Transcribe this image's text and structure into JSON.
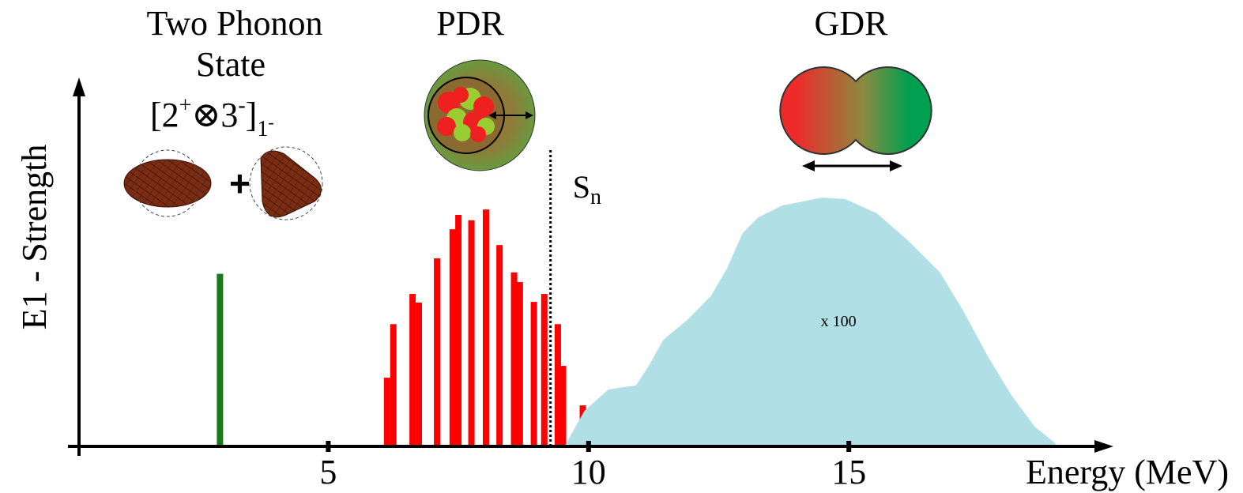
{
  "chart_data": {
    "type": "spectrum",
    "xlabel": "Energy (MeV)",
    "ylabel": "E1 - Strength",
    "xlim": [
      0,
      19.9
    ],
    "ylim": [
      0,
      100
    ],
    "xticks": [
      5,
      10,
      15
    ],
    "series": [
      {
        "type": "bar",
        "color": "#1a7a1a",
        "x": [
          2.92
        ],
        "values": [
          48
        ]
      },
      {
        "type": "bar",
        "color": "#ff0000",
        "x": [
          6.13,
          6.25,
          6.62,
          6.74,
          7.09,
          7.39,
          7.5,
          7.75,
          8.03,
          8.29,
          8.57,
          8.68,
          8.95,
          9.15,
          9.41,
          9.51,
          9.89
        ],
        "values": [
          19.1,
          34,
          42.4,
          40,
          52.3,
          60.4,
          64.4,
          62.9,
          65.9,
          56,
          48.4,
          45.7,
          40.2,
          42.4,
          34,
          22.4,
          11.4
        ]
      },
      {
        "type": "area",
        "color": "#b0dfe5",
        "x": [
          9.54,
          9.92,
          10.38,
          10.68,
          10.91,
          11.14,
          11.44,
          11.9,
          12.35,
          12.66,
          12.96,
          13.26,
          13.72,
          14.48,
          14.93,
          15.54,
          16.15,
          16.75,
          17.21,
          17.66,
          18.12,
          18.57,
          18.95,
          19.0
        ],
        "values": [
          0,
          9.9,
          15.8,
          16.5,
          16.9,
          22,
          29.7,
          35.2,
          41.8,
          49.5,
          59.3,
          63.7,
          67,
          69.2,
          68.8,
          64.8,
          57.1,
          48.4,
          37.4,
          25.3,
          14.3,
          5.5,
          1.1,
          0
        ],
        "annotation": "x 100"
      }
    ],
    "threshold": {
      "x": 9.27,
      "label": "S",
      "subscript": "n"
    },
    "annotations": {
      "two_phonon": [
        "Two Phonon",
        "State"
      ],
      "formula": [
        "[2",
        "+",
        "⊗3",
        "-",
        "]",
        "1",
        "-"
      ],
      "pdr": "PDR",
      "gdr": "GDR"
    }
  }
}
